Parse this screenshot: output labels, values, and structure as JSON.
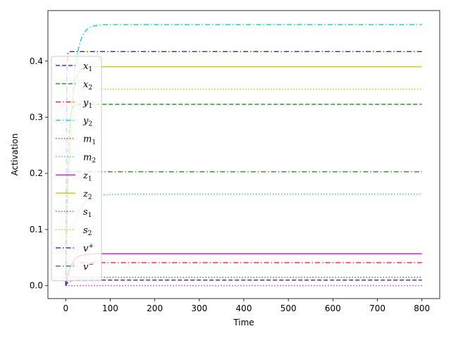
{
  "chart_data": {
    "type": "line",
    "title": "",
    "xlabel": "Time",
    "ylabel": "Activation",
    "xlim": [
      -40,
      840
    ],
    "ylim": [
      -0.023,
      0.49
    ],
    "xticks": [
      0,
      100,
      200,
      300,
      400,
      500,
      600,
      700,
      800
    ],
    "xtick_labels": [
      "0",
      "100",
      "200",
      "300",
      "400",
      "500",
      "600",
      "700",
      "800"
    ],
    "yticks": [
      0.0,
      0.1,
      0.2,
      0.3,
      0.4
    ],
    "ytick_labels": [
      "0.0",
      "0.1",
      "0.2",
      "0.3",
      "0.4"
    ],
    "grid": false,
    "legend_position": "upper-left",
    "series": [
      {
        "name": "x_1",
        "base": "x",
        "sub": "1",
        "sup": "",
        "color": "#0000ff",
        "dash": "6,3",
        "final": 0.01,
        "tau": 6
      },
      {
        "name": "x_2",
        "base": "x",
        "sub": "2",
        "sup": "",
        "color": "#008000",
        "dash": "6,3",
        "final": 0.323,
        "tau": 4
      },
      {
        "name": "y_1",
        "base": "y",
        "sub": "1",
        "sup": "",
        "color": "#ff0000",
        "dash": "7,3,1.5,3",
        "final": 0.041,
        "tau": 6
      },
      {
        "name": "y_2",
        "base": "y",
        "sub": "2",
        "sup": "",
        "color": "#00bfbf",
        "dash": "7,3,1.5,3",
        "final": 0.465,
        "tau": 12
      },
      {
        "name": "m_1",
        "base": "m",
        "sub": "1",
        "sup": "",
        "color": "#ff0000",
        "dash": "1.5,2.5",
        "final": 0.015,
        "tau": 6
      },
      {
        "name": "m_2",
        "base": "m",
        "sub": "2",
        "sup": "",
        "color": "#00bfbf",
        "dash": "1.5,2.5",
        "final": 0.163,
        "tau": 18
      },
      {
        "name": "z_1",
        "base": "z",
        "sub": "1",
        "sup": "",
        "color": "#bf00bf",
        "dash": "",
        "final": 0.057,
        "tau": 12
      },
      {
        "name": "z_2",
        "base": "z",
        "sub": "2",
        "sup": "",
        "color": "#bfbf00",
        "dash": "",
        "final": 0.39,
        "tau": 8
      },
      {
        "name": "s_1",
        "base": "s",
        "sub": "1",
        "sup": "",
        "color": "#bf00bf",
        "dash": "1.5,2.5",
        "final": 0.0,
        "tau": 4
      },
      {
        "name": "s_2",
        "base": "s",
        "sub": "2",
        "sup": "",
        "color": "#bfbf00",
        "dash": "1.5,2.5",
        "final": 0.35,
        "tau": 8
      },
      {
        "name": "v^+",
        "base": "v",
        "sub": "",
        "sup": "+",
        "color": "#0000ff",
        "dash": "7,3,1.5,3",
        "final": 0.417,
        "tau": 1
      },
      {
        "name": "v^-",
        "base": "v",
        "sub": "",
        "sup": "−",
        "color": "#008000",
        "dash": "7,3,1.5,3",
        "final": 0.203,
        "tau": 1
      }
    ],
    "x_end": 800
  }
}
